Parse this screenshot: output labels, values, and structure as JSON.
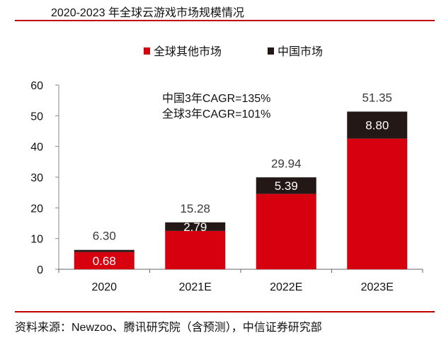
{
  "header": {
    "title": "2020-2023 年全球云游戏市场规模情况"
  },
  "footer": {
    "source": "资料来源：Newzoo、腾讯研究院（含预测），中信证券研究部"
  },
  "colors": {
    "other_markets": "#d7000f",
    "china_market": "#231815",
    "rule": "#c00000"
  },
  "chart_data": {
    "type": "bar",
    "stacked": true,
    "title": "2020-2023 年全球云游戏市场规模情况",
    "xlabel": "",
    "ylabel": "",
    "categories": [
      "2020",
      "2021E",
      "2022E",
      "2023E"
    ],
    "series": [
      {
        "name": "全球其他市场",
        "values": [
          5.62,
          12.49,
          24.55,
          42.55
        ],
        "color": "#d7000f"
      },
      {
        "name": "中国市场",
        "values": [
          0.68,
          2.79,
          5.39,
          8.8
        ],
        "color": "#231815"
      }
    ],
    "totals": [
      6.3,
      15.28,
      29.94,
      51.35
    ],
    "total_labels": [
      "6.30",
      "15.28",
      "29.94",
      "51.35"
    ],
    "china_labels": [
      "0.68",
      "2.79",
      "5.39",
      "8.80"
    ],
    "ylim": [
      0,
      60
    ],
    "yticks": [
      0,
      10,
      20,
      30,
      40,
      50,
      60
    ],
    "grid": false,
    "legend": {
      "position": "top",
      "entries": [
        "全球其他市场",
        "中国市场"
      ]
    },
    "annotations": [
      "中国3年CAGR=135%",
      "全球3年CAGR=101%"
    ]
  }
}
